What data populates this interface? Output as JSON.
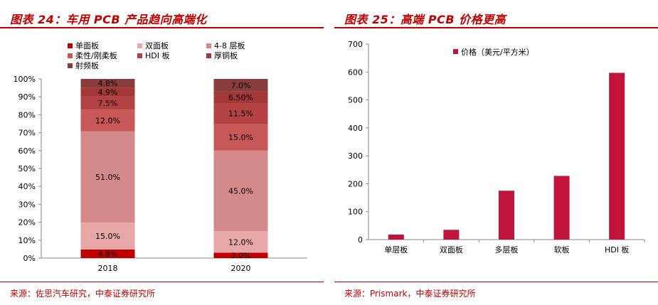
{
  "left": {
    "title": "图表 24：车用 PCB 产品趋向高端化",
    "source": "来源：佐思汽车研究，中泰证券研究所",
    "chart_data": {
      "type": "bar",
      "stacked": true,
      "categories": [
        "2018",
        "2020"
      ],
      "ylim": [
        0,
        100
      ],
      "y_ticks": [
        "0%",
        "10%",
        "20%",
        "30%",
        "40%",
        "50%",
        "60%",
        "70%",
        "80%",
        "90%",
        "100%"
      ],
      "legend_position": "top",
      "series": [
        {
          "name": "单面板",
          "values": [
            4.8,
            3.0
          ],
          "labels": [
            "4.8%",
            "3.0%"
          ],
          "color": "#c00000"
        },
        {
          "name": "双面板",
          "values": [
            15.0,
            12.0
          ],
          "labels": [
            "15.0%",
            "12.0%"
          ],
          "color": "#e8a7a7"
        },
        {
          "name": "4-8 层板",
          "values": [
            51.0,
            45.0
          ],
          "labels": [
            "51.0%",
            "45.0%"
          ],
          "color": "#d48a8a"
        },
        {
          "name": "柔性/刚柔板",
          "values": [
            12.0,
            15.0
          ],
          "labels": [
            "12.0%",
            "15.0%"
          ],
          "color": "#c85757"
        },
        {
          "name": "HDI 板",
          "values": [
            7.5,
            11.5
          ],
          "labels": [
            "7.5%",
            "11.5%"
          ],
          "color": "#b54242"
        },
        {
          "name": "厚铜板",
          "values": [
            4.9,
            6.5
          ],
          "labels": [
            "4.9%",
            "6.50%"
          ],
          "color": "#a33838"
        },
        {
          "name": "射频板",
          "values": [
            4.8,
            7.0
          ],
          "labels": [
            "4.8%",
            "7.0%"
          ],
          "color": "#8a3c3c"
        }
      ]
    }
  },
  "right": {
    "title": "图表 25：高端 PCB 价格更高",
    "source": "来源：Prismark，中泰证券研究所",
    "chart_data": {
      "type": "bar",
      "categories": [
        "单层板",
        "双面板",
        "多层板",
        "软板",
        "HDI 板"
      ],
      "series": [
        {
          "name": "价格（美元/平方米）",
          "values": [
            18,
            35,
            175,
            228,
            597
          ],
          "color": "#c0143c"
        }
      ],
      "ylim": [
        0,
        700
      ],
      "y_ticks": [
        "0",
        "100",
        "200",
        "300",
        "400",
        "500",
        "600",
        "700"
      ],
      "legend_position": "top-left"
    }
  }
}
